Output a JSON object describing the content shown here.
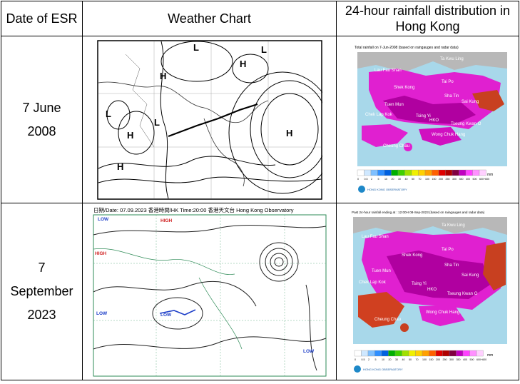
{
  "headers": {
    "date": "Date of ESR",
    "chart": "Weather Chart",
    "rainfall": "24-hour rainfall distribution in Hong Kong"
  },
  "rows": [
    {
      "date_line1": "7 June",
      "date_line2": "2008",
      "chart": {
        "pressure_labels": [
          "H",
          "H",
          "H",
          "H",
          "L",
          "L",
          "L",
          "L",
          "H"
        ]
      },
      "map": {
        "title": "Total rainfall on  7-Jun-2008   (based on raingauges and radar data)",
        "places": [
          "Ta Kwu Ling",
          "Lau Fau Shan",
          "Tai Po",
          "Shek Kong",
          "Sha Tin",
          "Tuen Mun",
          "Sai Kung",
          "Chek Lap Kok",
          "Tsing Yi",
          "HKO",
          "Tseung Kwan O",
          "Wong Chuk Hang",
          "Cheung Chau"
        ],
        "legend_values": [
          "0",
          "0.5",
          "2",
          "5",
          "10",
          "20",
          "30",
          "40",
          "50",
          "70",
          "100",
          "150",
          "200",
          "250",
          "300",
          "350",
          "400",
          "500",
          "600+600"
        ],
        "unit": "mm",
        "logo_text": "HONG KONG OBSERVATORY"
      }
    },
    {
      "date_line1": "7",
      "date_line2": "September",
      "date_line3": "2023",
      "chart": {
        "title": "日期/Date: 07.09.2023  香港時間/HK Time:20:00   香港天文台 Hong Kong Observatory",
        "pressure_labels": [
          "LOW",
          "HIGH",
          "HIGH",
          "LOW",
          "LOW",
          "LOW"
        ]
      },
      "map": {
        "title": "Past 24-hour rainfall ending at : 12:00H 08-Sep-2023  (based on raingauges and radar data)",
        "places": [
          "Ta Kwu Ling",
          "Lau Fau Shan",
          "Tai Po",
          "Shek Kong",
          "Sha Tin",
          "Tuen Mun",
          "Sai Kung",
          "Chek Lap Kok",
          "Tsing Yi",
          "HKO",
          "Tseung Kwan O",
          "Wong Chuk Hang",
          "Cheung Chau"
        ],
        "legend_values": [
          "0",
          "0.5",
          "2",
          "5",
          "10",
          "20",
          "30",
          "40",
          "50",
          "70",
          "100",
          "150",
          "200",
          "250",
          "300",
          "350",
          "400",
          "500",
          "600+600"
        ],
        "unit": "mm",
        "logo_text": "HONG KONG OBSERVATORY"
      }
    }
  ],
  "legend_colors": [
    "#ffffff",
    "#cfe8ff",
    "#7fc0ff",
    "#2f8fff",
    "#0060e0",
    "#00b000",
    "#40d000",
    "#a0e000",
    "#f0f000",
    "#ffd000",
    "#ffa000",
    "#ff6000",
    "#e00000",
    "#b00000",
    "#800040",
    "#c000c0",
    "#ff40ff",
    "#ff90ff",
    "#ffd0ff"
  ]
}
